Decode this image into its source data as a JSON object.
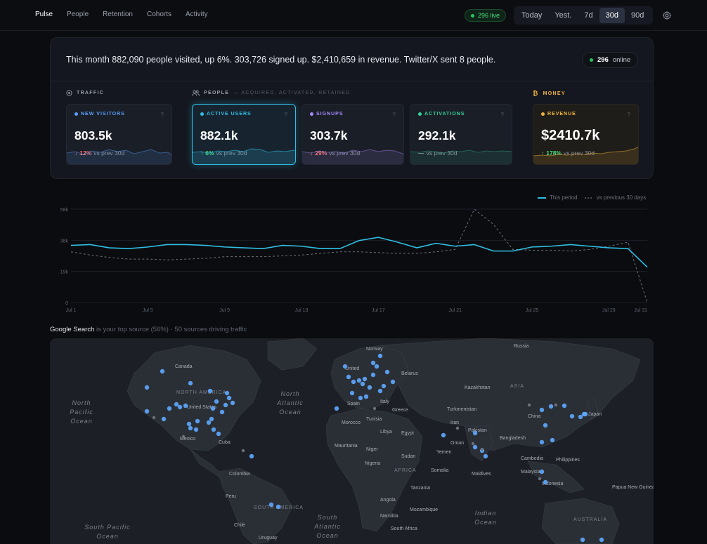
{
  "nav": {
    "tabs": [
      {
        "label": "Pulse",
        "active": true
      },
      {
        "label": "People",
        "active": false
      },
      {
        "label": "Retention",
        "active": false
      },
      {
        "label": "Cohorts",
        "active": false
      },
      {
        "label": "Activity",
        "active": false
      }
    ],
    "live_label": "296 live",
    "ranges": [
      {
        "label": "Today",
        "active": false
      },
      {
        "label": "Yest.",
        "active": false
      },
      {
        "label": "7d",
        "active": false
      },
      {
        "label": "30d",
        "active": true
      },
      {
        "label": "90d",
        "active": false
      }
    ],
    "settings_icon": "gear-icon"
  },
  "summary": {
    "text": "This month 882,090 people visited, up 6%. 303,726 signed up. $2,410,659 in revenue. Twitter/X sent 8 people.",
    "online_count": "296",
    "online_label": "online"
  },
  "sections": {
    "traffic": "TRAFFIC",
    "people": "PEOPLE",
    "people_sub": "— ACQUIRED, ACTIVATED, RETAINED",
    "money": "MONEY"
  },
  "metrics": [
    {
      "label": "NEW VISITORS",
      "value": "803.5k",
      "delta": "12%",
      "direction": "down",
      "compare": "vs prev 30d",
      "color": "#5aa0ff"
    },
    {
      "label": "ACTIVE USERS",
      "value": "882.1k",
      "delta": "6%",
      "direction": "up",
      "compare": "vs prev 30d",
      "color": "#2fbfe4"
    },
    {
      "label": "SIGNUPS",
      "value": "303.7k",
      "delta": "29%",
      "direction": "down",
      "compare": "vs prev 30d",
      "color": "#a78bfa"
    },
    {
      "label": "ACTIVATIONS",
      "value": "292.1k",
      "delta": "",
      "direction": "flat",
      "compare": "vs prev 30d",
      "color": "#34d399"
    },
    {
      "label": "REVENUE",
      "value": "$2410.7k",
      "delta": "178%",
      "direction": "up",
      "compare": "vs prev 30d",
      "color": "#f3b53c"
    }
  ],
  "colors": {
    "up": "#4ade80",
    "down": "#f87171",
    "accent": "#2fbfe4",
    "money": "#f3b53c"
  },
  "chart_data": {
    "type": "line",
    "title": "",
    "legend": [
      "This period",
      "vs previous 30 days"
    ],
    "x_ticks": [
      "Jul 1",
      "Jul 5",
      "Jul 9",
      "Jul 13",
      "Jul 17",
      "Jul 21",
      "Jul 25",
      "Jul 29",
      "Jul 31"
    ],
    "y_ticks": [
      "58k",
      "38k",
      "19k",
      "0"
    ],
    "ylim": [
      0,
      58000
    ],
    "x": [
      "Jul 1",
      "Jul 2",
      "Jul 3",
      "Jul 4",
      "Jul 5",
      "Jul 6",
      "Jul 7",
      "Jul 8",
      "Jul 9",
      "Jul 10",
      "Jul 11",
      "Jul 12",
      "Jul 13",
      "Jul 14",
      "Jul 15",
      "Jul 16",
      "Jul 17",
      "Jul 18",
      "Jul 19",
      "Jul 20",
      "Jul 21",
      "Jul 22",
      "Jul 23",
      "Jul 24",
      "Jul 25",
      "Jul 26",
      "Jul 27",
      "Jul 28",
      "Jul 29",
      "Jul 30",
      "Jul 31"
    ],
    "series": [
      {
        "name": "This period",
        "values": [
          35500,
          36000,
          34000,
          33500,
          34500,
          36000,
          36000,
          35500,
          34500,
          34000,
          33500,
          35500,
          35000,
          33500,
          33500,
          38500,
          40500,
          37500,
          34000,
          36800,
          35000,
          36000,
          32000,
          32000,
          34500,
          35000,
          36000,
          35000,
          34000,
          33500,
          22000
        ]
      },
      {
        "name": "vs previous 30 days",
        "values": [
          31500,
          29500,
          28000,
          27000,
          27000,
          26500,
          27000,
          27500,
          28500,
          28500,
          28500,
          29000,
          29500,
          30500,
          31500,
          31500,
          31000,
          30500,
          30500,
          31500,
          33000,
          58000,
          48500,
          33000,
          32500,
          32500,
          32000,
          33000,
          35000,
          37500,
          0
        ]
      }
    ]
  },
  "sources": {
    "top": "Google Search",
    "rest": "is your top source (56%) · 50 sources driving traffic"
  },
  "map": {
    "countries": [
      "Russia",
      "Norway",
      "Canada",
      "NORTH AMERICA",
      "United States",
      "Mexico",
      "Cuba",
      "Colombia",
      "Peru",
      "SOUTH AMERICA",
      "Chile",
      "Uruguay",
      "Kazakhstan",
      "ASIA",
      "China",
      "Japan",
      "Turkmenistan",
      "Iran",
      "Pakistan",
      "Bangladesh",
      "Oman",
      "Yemen",
      "Maldives",
      "Cambodia",
      "Philippines",
      "Malaysia",
      "Indonesia",
      "Papua New Guinea",
      "AUSTRALIA",
      "Spain",
      "Italy",
      "Greece",
      "Tunisia",
      "Morocco",
      "Libya",
      "Egypt",
      "Mauritania",
      "Niger",
      "Nigeria",
      "Sudan",
      "Somalia",
      "AFRICA",
      "Tanzania",
      "Angola",
      "Mozambique",
      "Namibia",
      "South Africa",
      "Belarus",
      "United Kingdom"
    ],
    "oceans": [
      "North Pacific Ocean",
      "North Atlantic Ocean",
      "South Atlantic Ocean",
      "Indian Ocean",
      "South Pacific Ocean"
    ]
  }
}
